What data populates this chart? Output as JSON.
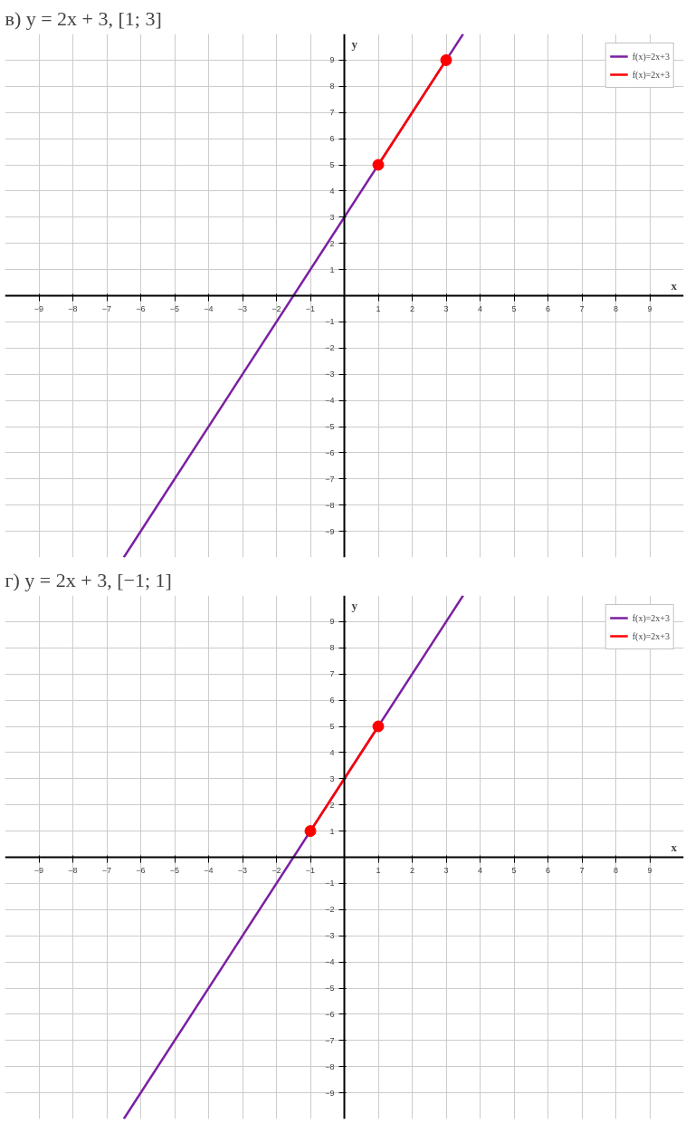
{
  "chart_data": [
    {
      "type": "line",
      "title": "в) y = 2x + 3,     [1; 3]",
      "xlabel": "x",
      "ylabel": "y",
      "xlim": [
        -10,
        10
      ],
      "ylim": [
        -10,
        10
      ],
      "xticks": [
        -9,
        -8,
        -7,
        -6,
        -5,
        -4,
        -3,
        -2,
        -1,
        1,
        2,
        3,
        4,
        5,
        6,
        7,
        8,
        9
      ],
      "yticks": [
        -9,
        -8,
        -7,
        -6,
        -5,
        -4,
        -3,
        -2,
        -1,
        1,
        2,
        3,
        4,
        5,
        6,
        7,
        8,
        9
      ],
      "grid": true,
      "legend": "top right",
      "series": [
        {
          "name": "f(x)=2x+3",
          "color": "#7b1fa2",
          "x": [
            -6.5,
            3.5
          ],
          "values": [
            -10,
            10
          ],
          "marker": "none"
        },
        {
          "name": "f(x)=2x+3",
          "color": "#ff0000",
          "x": [
            1,
            3
          ],
          "values": [
            5,
            9
          ],
          "marker": "circle"
        }
      ]
    },
    {
      "type": "line",
      "title": "г) y = 2x + 3,     [−1; 1]",
      "xlabel": "x",
      "ylabel": "y",
      "xlim": [
        -10,
        10
      ],
      "ylim": [
        -10,
        10
      ],
      "xticks": [
        -9,
        -8,
        -7,
        -6,
        -5,
        -4,
        -3,
        -2,
        -1,
        1,
        2,
        3,
        4,
        5,
        6,
        7,
        8,
        9
      ],
      "yticks": [
        -9,
        -8,
        -7,
        -6,
        -5,
        -4,
        -3,
        -2,
        -1,
        1,
        2,
        3,
        4,
        5,
        6,
        7,
        8,
        9
      ],
      "grid": true,
      "legend": "top right",
      "series": [
        {
          "name": "f(x)=2x+3",
          "color": "#7b1fa2",
          "x": [
            -6.5,
            3.5
          ],
          "values": [
            -10,
            10
          ],
          "marker": "none"
        },
        {
          "name": "f(x)=2x+3",
          "color": "#ff0000",
          "x": [
            -1,
            1
          ],
          "values": [
            1,
            5
          ],
          "marker": "circle"
        }
      ]
    }
  ]
}
